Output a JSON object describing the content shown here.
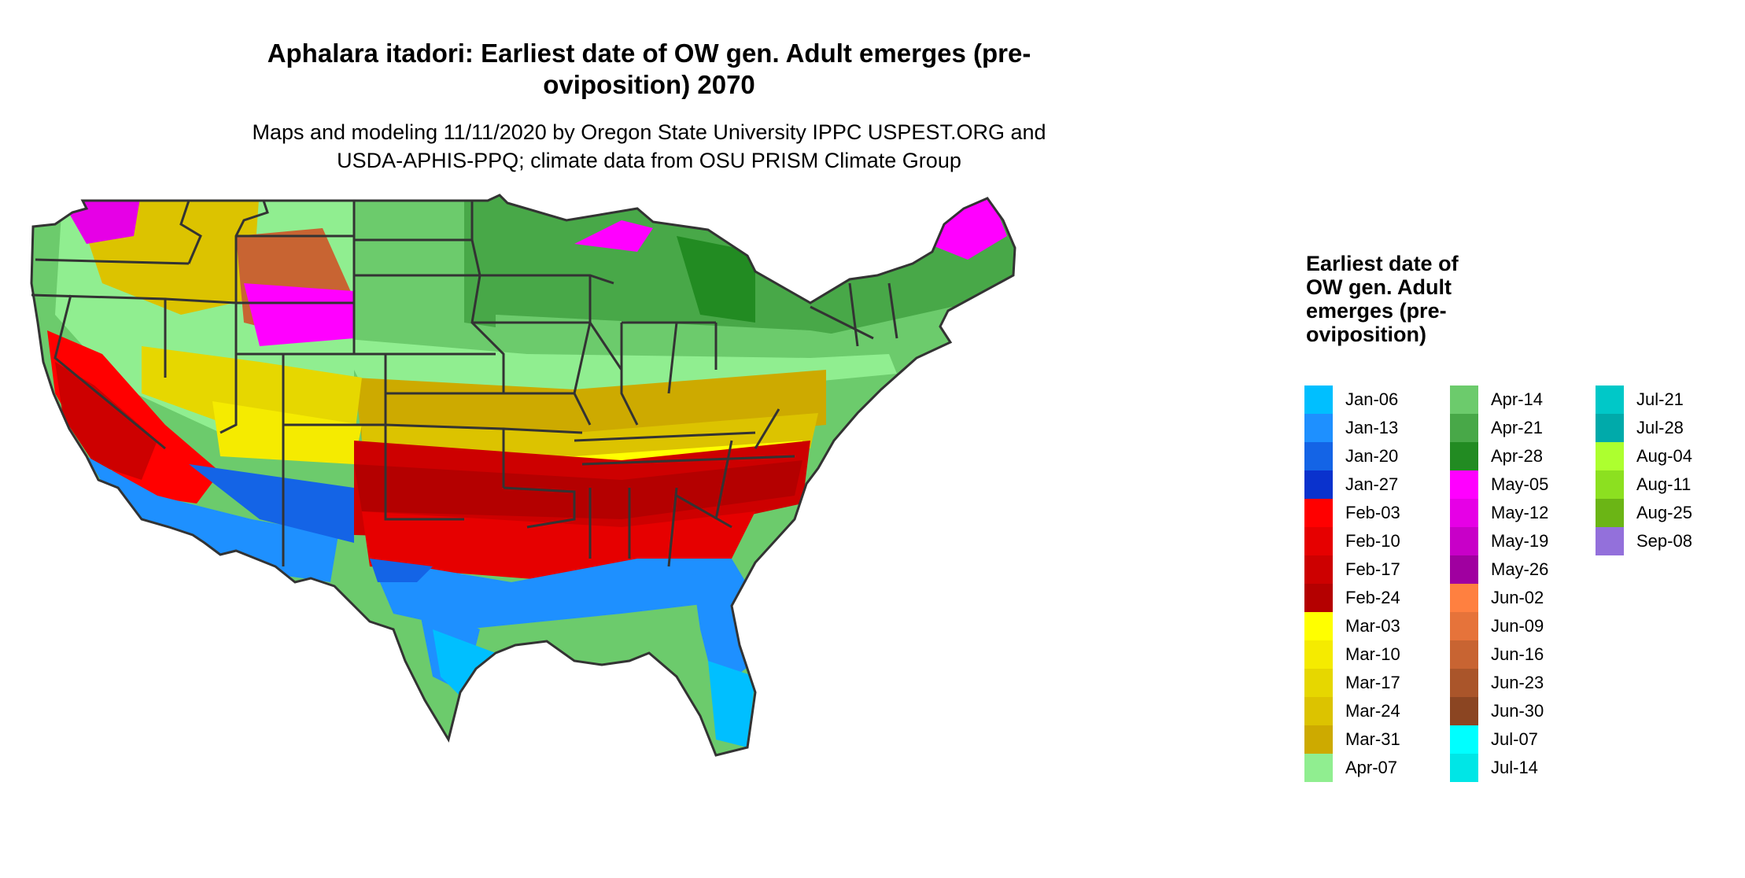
{
  "title": "Aphalara itadori: Earliest date of OW gen. Adult emerges (pre-oviposition) 2070",
  "subtitle_line1": "Maps and modeling 11/11/2020 by Oregon State University IPPC USPEST.ORG and",
  "subtitle_line2": "USDA-APHIS-PPQ; climate data from OSU PRISM Climate Group",
  "legend": {
    "title": "Earliest date of OW gen. Adult emerges (pre-oviposition)",
    "items": [
      {
        "label": "Jan-06",
        "color": "#00BFFF"
      },
      {
        "label": "Jan-13",
        "color": "#1E90FF"
      },
      {
        "label": "Jan-20",
        "color": "#1464E6"
      },
      {
        "label": "Jan-27",
        "color": "#0A32CD"
      },
      {
        "label": "Feb-03",
        "color": "#FF0000"
      },
      {
        "label": "Feb-10",
        "color": "#E60000"
      },
      {
        "label": "Feb-17",
        "color": "#CD0000"
      },
      {
        "label": "Feb-24",
        "color": "#B40000"
      },
      {
        "label": "Mar-03",
        "color": "#FFFF00"
      },
      {
        "label": "Mar-10",
        "color": "#F5EB00"
      },
      {
        "label": "Mar-17",
        "color": "#E6D700"
      },
      {
        "label": "Mar-24",
        "color": "#DCC300"
      },
      {
        "label": "Mar-31",
        "color": "#CDAA00"
      },
      {
        "label": "Apr-07",
        "color": "#90EE90"
      },
      {
        "label": "Apr-14",
        "color": "#6CCB6C"
      },
      {
        "label": "Apr-21",
        "color": "#48A848"
      },
      {
        "label": "Apr-28",
        "color": "#228B22"
      },
      {
        "label": "May-05",
        "color": "#FF00FF"
      },
      {
        "label": "May-12",
        "color": "#E600E6"
      },
      {
        "label": "May-19",
        "color": "#C800C8"
      },
      {
        "label": "May-26",
        "color": "#A000A0"
      },
      {
        "label": "Jun-02",
        "color": "#FF8040"
      },
      {
        "label": "Jun-09",
        "color": "#E6733A"
      },
      {
        "label": "Jun-16",
        "color": "#C86432"
      },
      {
        "label": "Jun-23",
        "color": "#AA552A"
      },
      {
        "label": "Jun-30",
        "color": "#8B4522"
      },
      {
        "label": "Jul-07",
        "color": "#00FFFF"
      },
      {
        "label": "Jul-14",
        "color": "#00E6E6"
      },
      {
        "label": "Jul-21",
        "color": "#00C8C8"
      },
      {
        "label": "Jul-28",
        "color": "#00AAAA"
      },
      {
        "label": "Aug-04",
        "color": "#ADFF2F"
      },
      {
        "label": "Aug-11",
        "color": "#8CE020"
      },
      {
        "label": "Aug-25",
        "color": "#6BB515"
      },
      {
        "label": "Sep-08",
        "color": "#9370DB"
      }
    ]
  }
}
